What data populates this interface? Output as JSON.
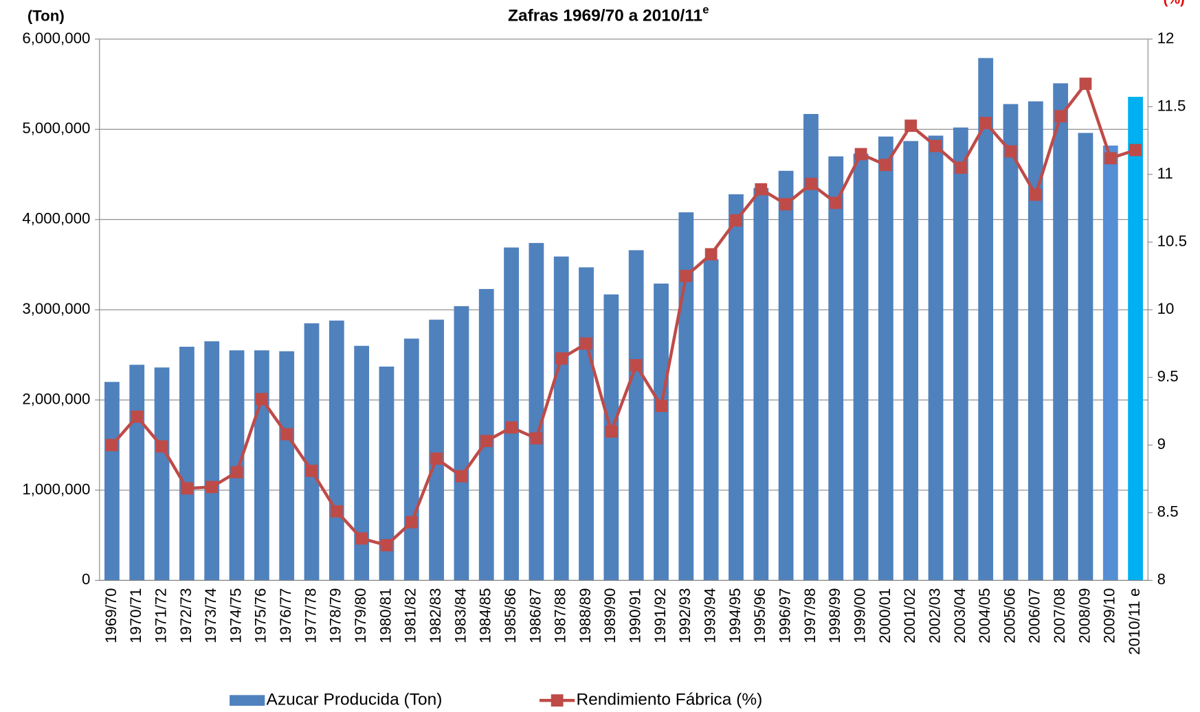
{
  "chart_data": {
    "type": "bar_line",
    "title": "Zafras 1969/70 a 2010/11",
    "title_superscript": "e",
    "y_label": "(Ton)",
    "y2_label": "(%)",
    "categories": [
      "1969/70",
      "1970/71",
      "1971/72",
      "1972/73",
      "1973/74",
      "1974/75",
      "1975/76",
      "1976/77",
      "1977/78",
      "1978/79",
      "1979/80",
      "1980/81",
      "1981/82",
      "1982/83",
      "1983/84",
      "1984/85",
      "1985/86",
      "1986/87",
      "1987/88",
      "1988/89",
      "1989/90",
      "1990/91",
      "1991/92",
      "1992/93",
      "1993/94",
      "1994/95",
      "1995/96",
      "1996/97",
      "1997/98",
      "1998/99",
      "1999/00",
      "2000/01",
      "2001/02",
      "2002/03",
      "2003/04",
      "2004/05",
      "2005/06",
      "2006/07",
      "2007/08",
      "2008/09",
      "2009/10",
      "2010/11 e"
    ],
    "series": [
      {
        "name": "Azucar Producida (Ton)",
        "type": "bar",
        "color": "#4f81bd",
        "colors": [
          "#4f81bd",
          "#4f81bd",
          "#4f81bd",
          "#4f81bd",
          "#4f81bd",
          "#4f81bd",
          "#4f81bd",
          "#4f81bd",
          "#4f81bd",
          "#4f81bd",
          "#4f81bd",
          "#4f81bd",
          "#4f81bd",
          "#4f81bd",
          "#4f81bd",
          "#4f81bd",
          "#4f81bd",
          "#4f81bd",
          "#4f81bd",
          "#4f81bd",
          "#4f81bd",
          "#4f81bd",
          "#4f81bd",
          "#4f81bd",
          "#4f81bd",
          "#4f81bd",
          "#4f81bd",
          "#4f81bd",
          "#4f81bd",
          "#4f81bd",
          "#4f81bd",
          "#4f81bd",
          "#4f81bd",
          "#4f81bd",
          "#4f81bd",
          "#4f81bd",
          "#4f81bd",
          "#4f81bd",
          "#4f81bd",
          "#4f81bd",
          "#558ed5",
          "#00b0f0"
        ],
        "values": [
          2200000,
          2390000,
          2360000,
          2590000,
          2650000,
          2550000,
          2550000,
          2540000,
          2850000,
          2880000,
          2600000,
          2370000,
          2680000,
          2890000,
          3040000,
          3230000,
          3690000,
          3740000,
          3590000,
          3470000,
          3170000,
          3660000,
          3290000,
          4080000,
          3560000,
          4280000,
          4350000,
          4540000,
          5170000,
          4700000,
          4730000,
          4920000,
          4870000,
          4930000,
          5020000,
          5790000,
          5280000,
          5310000,
          5510000,
          4960000,
          4820000,
          5360000
        ]
      },
      {
        "name": "Rendimiento Fábrica (%)",
        "type": "line",
        "axis": "y2",
        "color": "#be4b48",
        "values": [
          9.0,
          9.21,
          8.99,
          8.68,
          8.69,
          8.8,
          9.34,
          9.08,
          8.81,
          8.51,
          8.31,
          8.26,
          8.43,
          8.9,
          8.77,
          9.03,
          9.13,
          9.05,
          9.64,
          9.75,
          9.1,
          9.59,
          9.29,
          10.25,
          10.41,
          10.66,
          10.89,
          10.78,
          10.93,
          10.79,
          11.15,
          11.07,
          11.36,
          11.21,
          11.05,
          11.38,
          11.17,
          10.85,
          11.43,
          11.67,
          11.12,
          11.18
        ]
      }
    ],
    "ylim": [
      0,
      6000000
    ],
    "yticks": [
      0,
      {
        "value": 1000000,
        "label": "1,000,000"
      },
      {
        "value": 2000000,
        "label": "2,000,000"
      },
      {
        "value": 3000000,
        "label": "3,000,000"
      },
      {
        "value": 4000000,
        "label": "4,000,000"
      },
      {
        "value": 5000000,
        "label": "5,000,000"
      },
      {
        "value": 6000000,
        "label": "6,000,000"
      }
    ],
    "y2lim": [
      8,
      12
    ],
    "y2ticks": [
      8,
      8.5,
      9,
      9.5,
      10,
      10.5,
      11,
      11.5,
      12
    ],
    "grid": true
  }
}
